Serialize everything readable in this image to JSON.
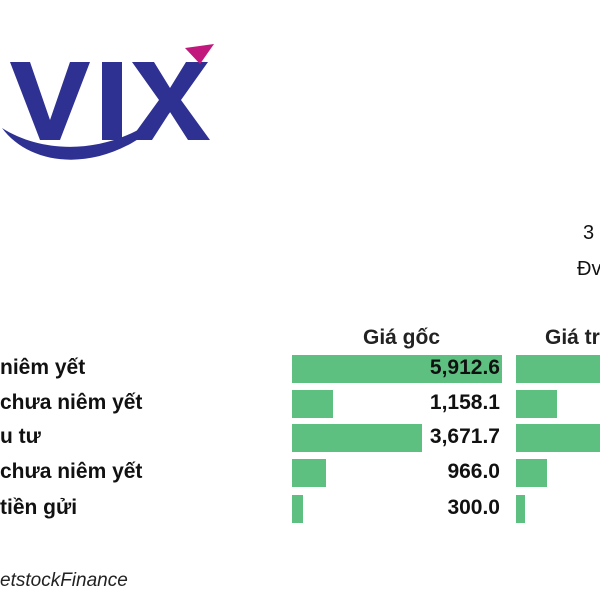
{
  "logo": {
    "text": "VIX",
    "colors": {
      "main": "#2e3192",
      "accent": "#c2187d"
    }
  },
  "meta": {
    "line1": "3",
    "line2": "Đv"
  },
  "chart_data": {
    "type": "bar",
    "columns": [
      "Giá gốc",
      "Giá tr"
    ],
    "categories": [
      "niêm yết",
      "chưa niêm yết",
      "u tư",
      "chưa niêm yết",
      "tiền gửi"
    ],
    "series": [
      {
        "name": "Giá gốc",
        "values": [
          5912.6,
          1158.1,
          3671.7,
          966.0,
          300.0
        ]
      }
    ],
    "value_labels": [
      "5,912.6",
      "1,158.1",
      "3,671.7",
      "966.0",
      "300.0"
    ],
    "second_column_bar_fraction": [
      1.0,
      0.46,
      1.0,
      0.34,
      0.1
    ],
    "bar_color": "#5ec080",
    "max_value": 5912.6
  },
  "source": "etstockFinance"
}
